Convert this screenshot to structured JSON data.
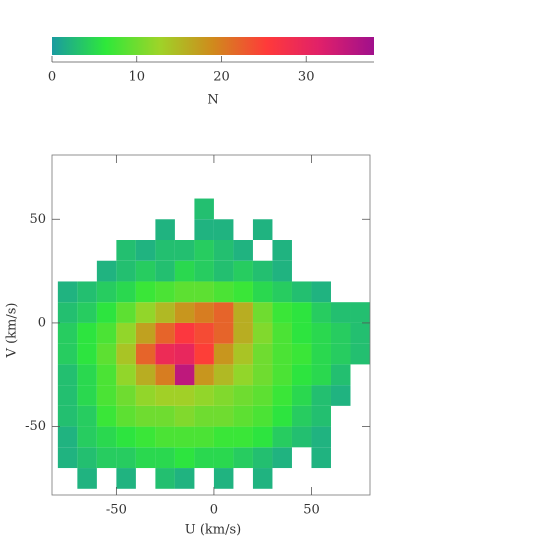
{
  "chart_data": {
    "type": "heatmap2d",
    "xlabel": "U (km/s)",
    "ylabel": "V (km/s)",
    "x_bins": [
      -80,
      -70,
      -60,
      -50,
      -40,
      -30,
      -20,
      -10,
      0,
      10,
      20,
      30,
      40,
      50,
      60,
      70,
      80
    ],
    "y_bins": [
      -80,
      -70,
      -60,
      -50,
      -40,
      -30,
      -20,
      -10,
      0,
      10,
      20,
      30,
      40,
      50,
      60
    ],
    "values": [
      [
        null,
        2,
        null,
        2,
        null,
        3,
        2,
        null,
        2,
        null,
        2,
        null,
        null,
        null,
        null,
        null
      ],
      [
        2,
        3,
        4,
        4,
        5,
        5,
        6,
        5,
        5,
        4,
        3,
        2,
        null,
        2,
        null,
        null
      ],
      [
        2,
        4,
        5,
        6,
        7,
        8,
        8,
        8,
        7,
        7,
        6,
        4,
        3,
        2,
        null,
        null
      ],
      [
        3,
        4,
        7,
        9,
        10,
        10,
        11,
        10,
        10,
        9,
        8,
        6,
        4,
        3,
        null,
        null
      ],
      [
        3,
        5,
        8,
        10,
        12,
        13,
        13,
        12,
        11,
        10,
        9,
        7,
        5,
        3,
        2,
        null
      ],
      [
        3,
        5,
        8,
        12,
        16,
        20,
        35,
        18,
        15,
        12,
        10,
        8,
        6,
        5,
        3,
        null
      ],
      [
        4,
        6,
        9,
        14,
        22,
        29,
        30,
        25,
        18,
        14,
        10,
        8,
        7,
        5,
        4,
        3
      ],
      [
        4,
        6,
        8,
        12,
        17,
        22,
        26,
        24,
        22,
        16,
        11,
        8,
        6,
        5,
        4,
        3
      ],
      [
        3,
        4,
        6,
        9,
        12,
        15,
        18,
        20,
        22,
        16,
        10,
        7,
        6,
        4,
        3,
        3
      ],
      [
        2,
        3,
        4,
        5,
        7,
        8,
        9,
        9,
        8,
        7,
        5,
        4,
        3,
        2,
        null,
        null
      ],
      [
        null,
        null,
        2,
        3,
        4,
        3,
        5,
        4,
        3,
        4,
        3,
        2,
        null,
        null,
        null,
        null
      ],
      [
        null,
        null,
        null,
        3,
        2,
        3,
        3,
        4,
        3,
        2,
        null,
        2,
        null,
        null,
        null,
        null
      ],
      [
        null,
        null,
        null,
        null,
        null,
        2,
        null,
        2,
        2,
        null,
        2,
        null,
        null,
        null,
        null,
        null
      ],
      [
        null,
        null,
        null,
        null,
        null,
        null,
        null,
        3,
        null,
        null,
        null,
        null,
        null,
        null,
        null,
        null
      ]
    ],
    "xlim": [
      -83,
      80
    ],
    "ylim": [
      -83,
      81
    ],
    "xticks": [
      -50,
      0,
      50
    ],
    "yticks": [
      -50,
      0,
      50
    ],
    "colormap": [
      "#1a9ba0",
      "#2ee83a",
      "#9ed428",
      "#d08a1c",
      "#ff3a3a",
      "#e0206a",
      "#a0108c"
    ],
    "colorbar": {
      "lim": [
        0,
        38
      ],
      "ticks": [
        0,
        10,
        20,
        30
      ],
      "label": "N"
    }
  }
}
